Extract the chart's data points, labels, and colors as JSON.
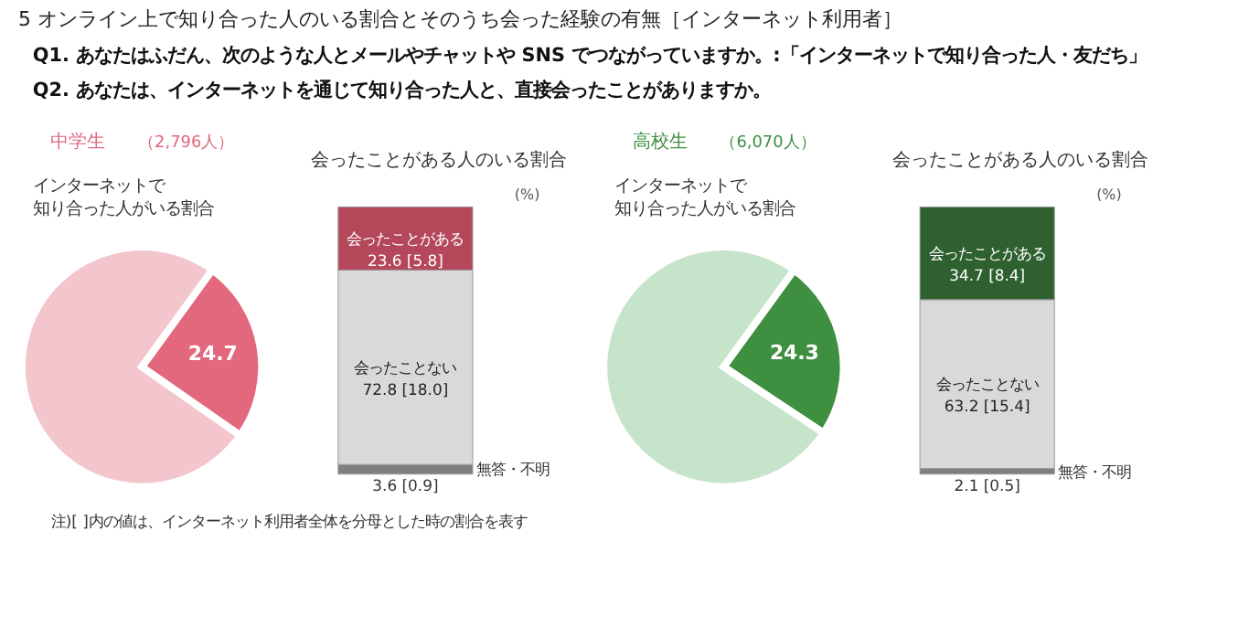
{
  "chart_data": [
    {
      "type": "other",
      "title": "5 オンライン上で知り合った人のいる割合とそのうち会った経験の有無［インターネット利用者］",
      "subtitle": "Q1. あなたはふだん、次のような人とメールやチャットや SNS でつながっていますか。:「インターネットで知り合った人・友だち」\nQ2. あなたは、インターネットを通じて知り合った人と、直接会ったことがありますか。",
      "annotations": [
        "注)[ ]内の値は、インターネット利用者全体を分母とした時の割合を表す"
      ]
    },
    {
      "type": "pie",
      "title": "中学生",
      "subtitle": "（2,796人）",
      "annotations": [
        "インターネットで知り合った人がいる割合"
      ],
      "categories": [
        null,
        null
      ],
      "values": [
        24.7,
        75.3
      ],
      "colors": [
        "#e3687e",
        "#f3c6ce"
      ],
      "value_labels": [
        "24.7",
        null
      ]
    },
    {
      "type": "bar",
      "stacked": true,
      "title": "会ったことがある人のいる割合",
      "ylabel": "(%)",
      "categories": [
        null
      ],
      "series": [
        {
          "name": "無答・不明",
          "color": "#7f7f7f",
          "values": [
            3.6
          ],
          "value_labels": [
            "3.6 [0.9]"
          ]
        },
        {
          "name": "会ったことない",
          "color": "#d9d9d9",
          "values": [
            72.8
          ],
          "value_labels": [
            "72.8 [18.0]"
          ]
        },
        {
          "name": "会ったことがある",
          "color": "#b5475b",
          "values": [
            23.6
          ],
          "value_labels": [
            "23.6 [5.8]"
          ]
        }
      ]
    },
    {
      "type": "pie",
      "title": "高校生",
      "subtitle": "（6,070人）",
      "annotations": [
        "インターネットで知り合った人がいる割合"
      ],
      "categories": [
        null,
        null
      ],
      "values": [
        24.3,
        75.7
      ],
      "colors": [
        "#3f8f41",
        "#c6e4c9"
      ],
      "value_labels": [
        "24.3",
        null
      ]
    },
    {
      "type": "bar",
      "stacked": true,
      "title": "会ったことがある人のいる割合",
      "ylabel": "(%)",
      "categories": [
        null
      ],
      "series": [
        {
          "name": "無答・不明",
          "color": "#7f7f7f",
          "values": [
            2.1
          ],
          "value_labels": [
            "2.1 [0.5]"
          ]
        },
        {
          "name": "会ったことない",
          "color": "#d9d9d9",
          "values": [
            63.2
          ],
          "value_labels": [
            "63.2 [15.4]"
          ]
        },
        {
          "name": "会ったことがある",
          "color": "#2f6130",
          "values": [
            34.7
          ],
          "value_labels": [
            "34.7 [8.4]"
          ]
        }
      ]
    }
  ]
}
